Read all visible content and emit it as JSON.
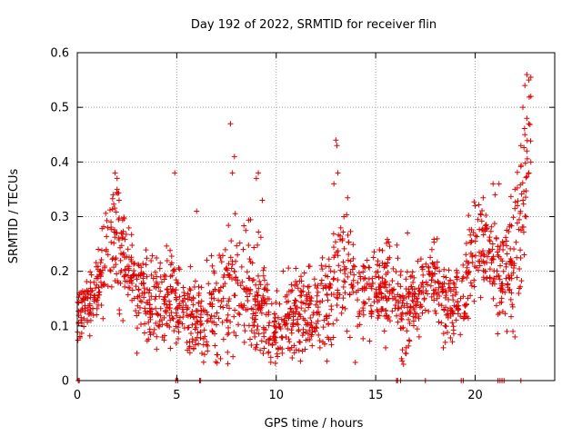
{
  "chart_data": {
    "type": "scatter",
    "title": "Day 192 of 2022, SRMTID for receiver flin",
    "xlabel": "GPS time / hours",
    "ylabel": "SRMTID / TECUs",
    "xlim": [
      0,
      24
    ],
    "ylim": [
      0,
      0.6
    ],
    "x_ticks": [
      0,
      5,
      10,
      15,
      20
    ],
    "y_ticks": [
      0,
      0.1,
      0.2,
      0.3,
      0.4,
      0.5,
      0.6
    ],
    "x_tick_labels": [
      "0",
      "5",
      "10",
      "15",
      "20"
    ],
    "y_tick_labels": [
      "0",
      "0.1",
      "0.2",
      "0.3",
      "0.4",
      "0.5",
      "0.6"
    ],
    "grid": true,
    "marker": "+",
    "series": [
      {
        "name": "SRMTID",
        "color": "#e00000",
        "profile": {
          "hours": [
            0,
            0.5,
            1,
            1.5,
            2,
            2.5,
            3,
            3.5,
            4,
            4.5,
            5,
            5.5,
            6,
            6.5,
            7,
            7.5,
            8,
            8.5,
            9,
            9.5,
            10,
            10.5,
            11,
            11.5,
            12,
            12.5,
            13,
            13.5,
            14,
            14.5,
            15,
            15.5,
            16,
            16.5,
            17,
            17.5,
            18,
            18.5,
            19,
            19.5,
            20,
            20.5,
            21,
            21.5,
            22,
            22.5,
            22.8
          ],
          "typical": [
            0.12,
            0.14,
            0.17,
            0.22,
            0.26,
            0.2,
            0.17,
            0.15,
            0.14,
            0.15,
            0.14,
            0.12,
            0.11,
            0.12,
            0.13,
            0.16,
            0.2,
            0.17,
            0.15,
            0.11,
            0.09,
            0.11,
            0.12,
            0.13,
            0.14,
            0.15,
            0.2,
            0.2,
            0.17,
            0.16,
            0.17,
            0.18,
            0.16,
            0.12,
            0.15,
            0.19,
            0.18,
            0.15,
            0.14,
            0.17,
            0.25,
            0.25,
            0.2,
            0.2,
            0.23,
            0.35,
            0.45
          ],
          "spread": [
            0.03,
            0.04,
            0.05,
            0.07,
            0.07,
            0.06,
            0.05,
            0.05,
            0.05,
            0.06,
            0.05,
            0.05,
            0.05,
            0.06,
            0.07,
            0.1,
            0.08,
            0.07,
            0.07,
            0.05,
            0.04,
            0.05,
            0.05,
            0.05,
            0.05,
            0.06,
            0.09,
            0.07,
            0.06,
            0.05,
            0.05,
            0.05,
            0.06,
            0.05,
            0.05,
            0.05,
            0.05,
            0.05,
            0.05,
            0.06,
            0.07,
            0.07,
            0.07,
            0.07,
            0.08,
            0.1,
            0.1
          ]
        },
        "outliers": [
          [
            7.7,
            0.47
          ],
          [
            7.9,
            0.41
          ],
          [
            7.8,
            0.38
          ],
          [
            13.0,
            0.44
          ],
          [
            13.05,
            0.43
          ],
          [
            13.1,
            0.38
          ],
          [
            4.9,
            0.38
          ],
          [
            1.9,
            0.38
          ],
          [
            2.0,
            0.37
          ],
          [
            9.1,
            0.38
          ],
          [
            9.0,
            0.37
          ],
          [
            12.9,
            0.36
          ],
          [
            22.6,
            0.56
          ],
          [
            22.7,
            0.55
          ],
          [
            22.5,
            0.54
          ],
          [
            22.8,
            0.52
          ],
          [
            22.4,
            0.5
          ],
          [
            22.6,
            0.48
          ],
          [
            22.7,
            0.47
          ],
          [
            22.5,
            0.45
          ],
          [
            22.3,
            0.43
          ],
          [
            22.6,
            0.42
          ],
          [
            22.8,
            0.4
          ],
          [
            22.7,
            0.38
          ],
          [
            21.2,
            0.36
          ],
          [
            20.9,
            0.36
          ],
          [
            22.0,
            0.35
          ],
          [
            21.0,
            0.34
          ],
          [
            20.0,
            0.32
          ],
          [
            2.0,
            0.35
          ],
          [
            1.8,
            0.34
          ],
          [
            2.1,
            0.33
          ],
          [
            9.3,
            0.33
          ],
          [
            13.4,
            0.3
          ],
          [
            6.0,
            0.31
          ],
          [
            16.6,
            0.27
          ],
          [
            3.0,
            0.05
          ],
          [
            7.2,
            0.04
          ],
          [
            10.3,
            0.05
          ],
          [
            10.2,
            0.06
          ],
          [
            15.5,
            0.06
          ],
          [
            16.3,
            0.04
          ],
          [
            16.4,
            0.03
          ],
          [
            16.5,
            0.05
          ],
          [
            18.4,
            0.06
          ],
          [
            18.5,
            0.07
          ],
          [
            21.6,
            0.09
          ],
          [
            21.9,
            0.09
          ],
          [
            22.0,
            0.08
          ],
          [
            8.4,
            0.07
          ],
          [
            11.2,
            0.07
          ],
          [
            12.2,
            0.06
          ]
        ],
        "zero_points": [
          0.05,
          0.1,
          4.95,
          5.05,
          6.15,
          6.2,
          16.05,
          16.1,
          16.25,
          17.5,
          19.3,
          19.4,
          21.15,
          21.25,
          21.35,
          21.45,
          22.3
        ]
      }
    ]
  }
}
